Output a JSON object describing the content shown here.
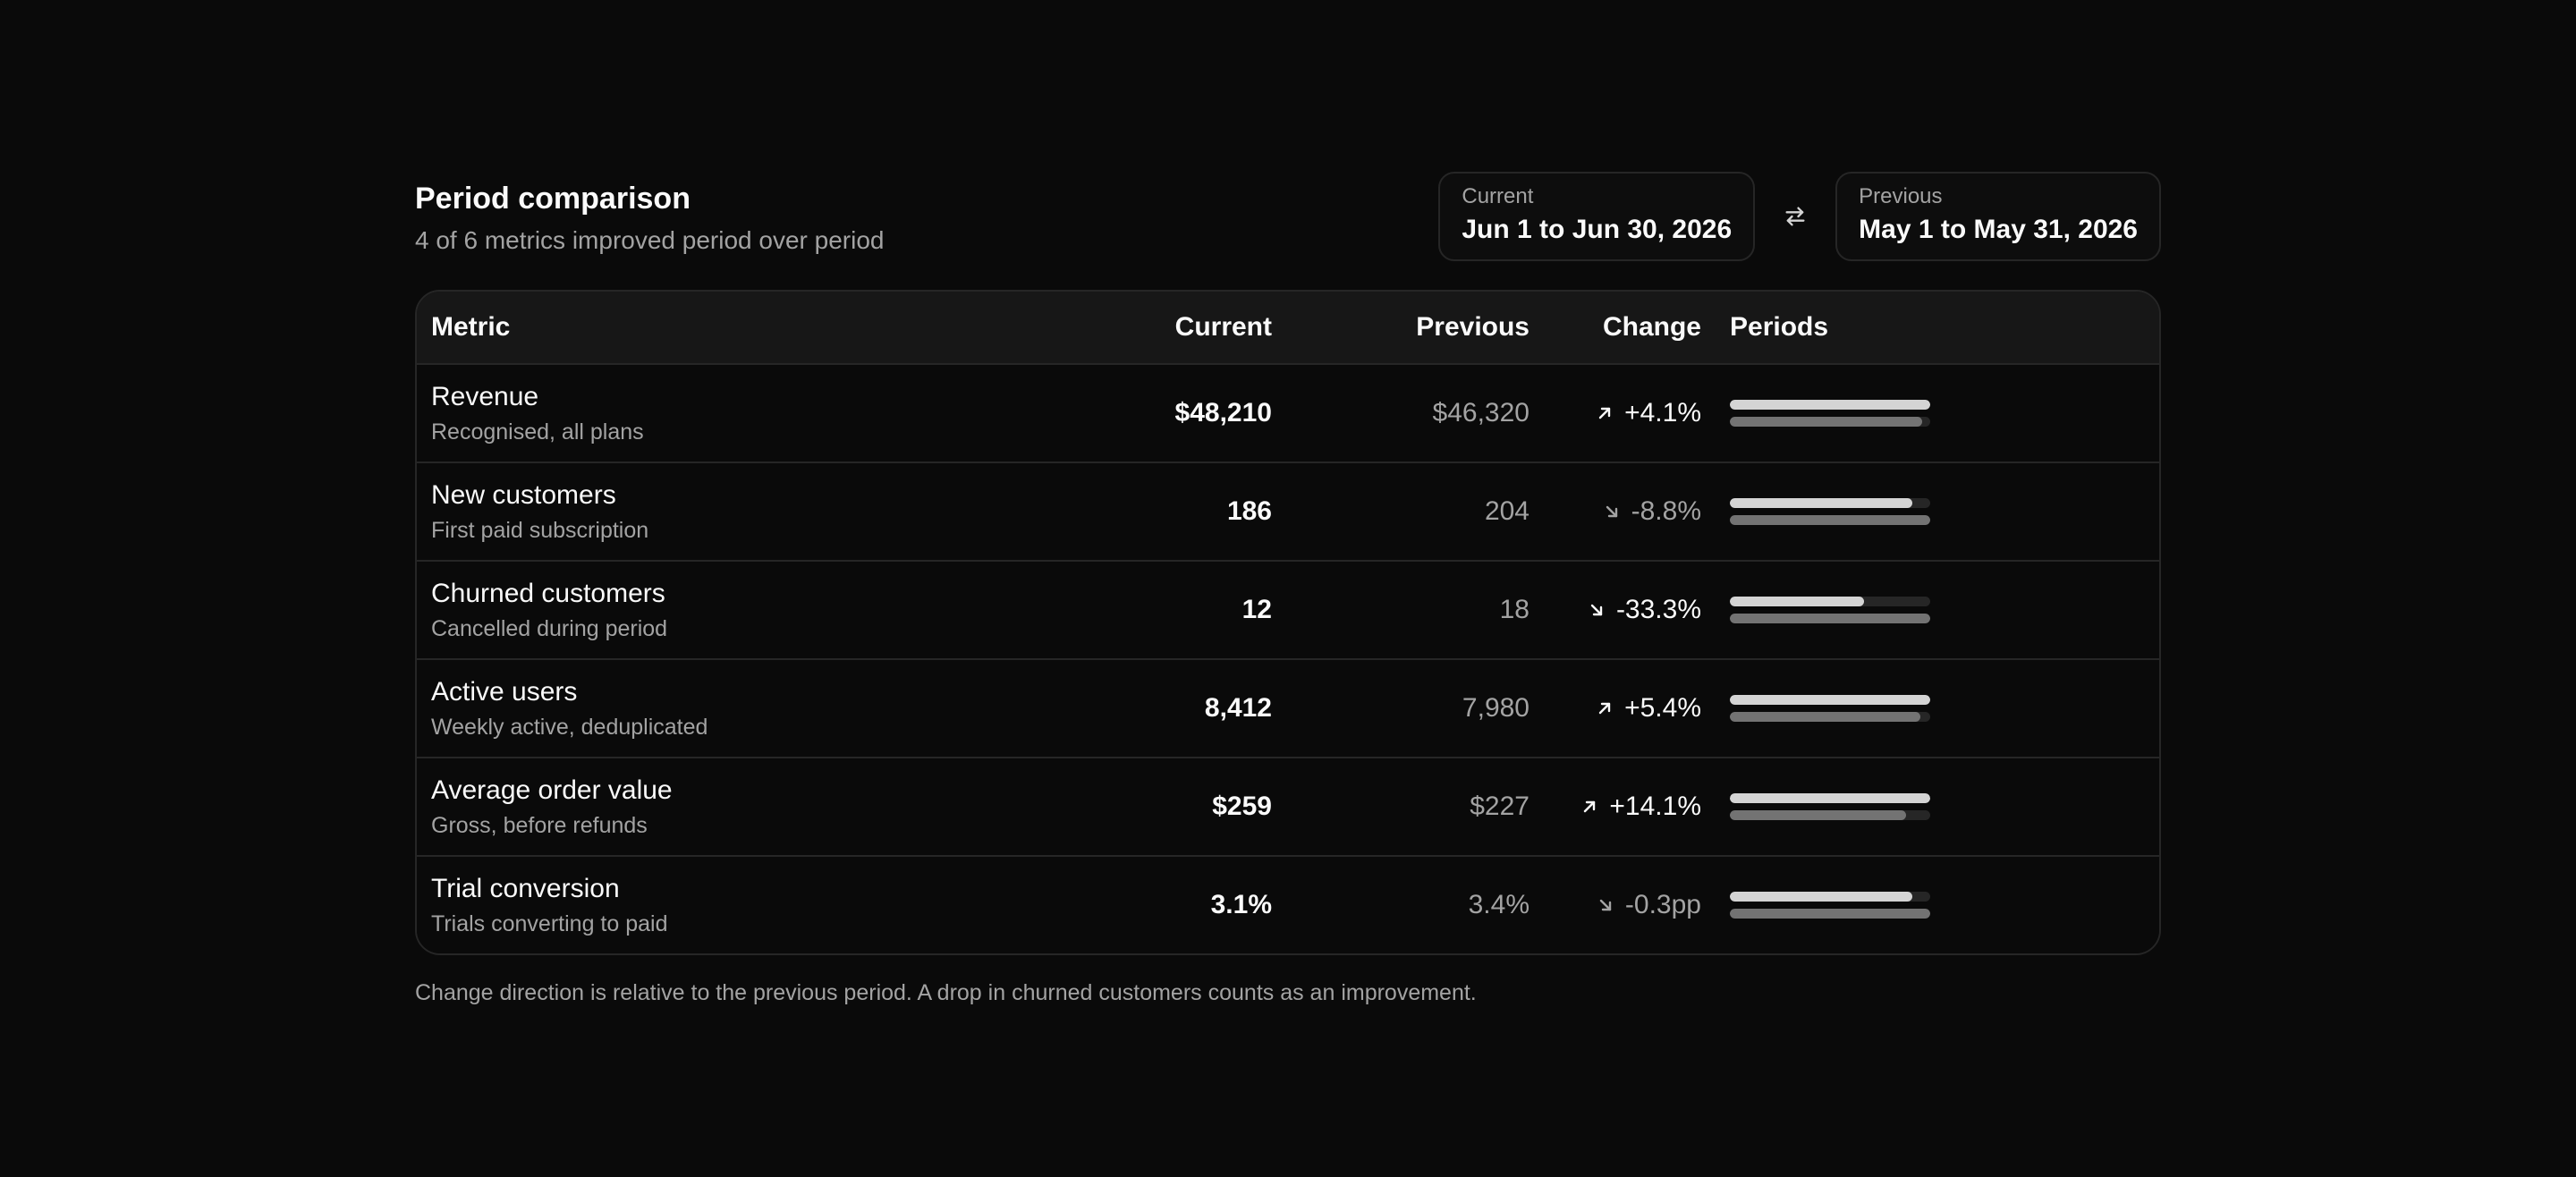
{
  "header": {
    "title": "Period comparison",
    "subtitle": "4 of 6 metrics improved period over period"
  },
  "periods": {
    "current": {
      "label": "Current",
      "value": "Jun 1 to Jun 30, 2026"
    },
    "previous": {
      "label": "Previous",
      "value": "May 1 to May 31, 2026"
    },
    "swap_icon": "swap-arrows-icon"
  },
  "table": {
    "columns": {
      "metric": "Metric",
      "current": "Current",
      "previous": "Previous",
      "change": "Change",
      "periods": "Periods"
    },
    "rows": [
      {
        "name": "Revenue",
        "desc": "Recognised, all plans",
        "current": "$48,210",
        "previous": "$46,320",
        "change": "+4.1%",
        "direction": "up",
        "cur_fill": 1.0,
        "prev_fill": 0.96
      },
      {
        "name": "New customers",
        "desc": "First paid subscription",
        "current": "186",
        "previous": "204",
        "change": "-8.8%",
        "direction": "down",
        "cur_fill": 0.91,
        "prev_fill": 1.0
      },
      {
        "name": "Churned customers",
        "desc": "Cancelled during period",
        "current": "12",
        "previous": "18",
        "change": "-33.3%",
        "direction": "down-good",
        "cur_fill": 0.67,
        "prev_fill": 1.0
      },
      {
        "name": "Active users",
        "desc": "Weekly active, deduplicated",
        "current": "8,412",
        "previous": "7,980",
        "change": "+5.4%",
        "direction": "up",
        "cur_fill": 1.0,
        "prev_fill": 0.95
      },
      {
        "name": "Average order value",
        "desc": "Gross, before refunds",
        "current": "$259",
        "previous": "$227",
        "change": "+14.1%",
        "direction": "up",
        "cur_fill": 1.0,
        "prev_fill": 0.88
      },
      {
        "name": "Trial conversion",
        "desc": "Trials converting to paid",
        "current": "3.1%",
        "previous": "3.4%",
        "change": "-0.3pp",
        "direction": "down",
        "cur_fill": 0.91,
        "prev_fill": 1.0
      }
    ]
  },
  "footnote": "Change direction is relative to the previous period. A drop in churned customers counts as an improvement.",
  "colors": {
    "background": "#0a0a0a",
    "bar_current": "#d4d4d4",
    "bar_previous": "#737373"
  }
}
